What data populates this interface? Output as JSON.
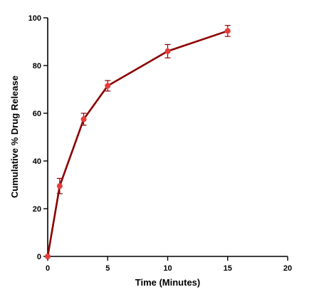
{
  "chart_data": {
    "type": "line",
    "title": "",
    "xlabel": "Time (Minutes)",
    "ylabel": "Cumulative % Drug Release",
    "xlim": [
      0,
      20
    ],
    "ylim": [
      0,
      100
    ],
    "x_ticks": [
      0,
      5,
      10,
      15,
      20
    ],
    "y_ticks": [
      0,
      20,
      40,
      60,
      80,
      100
    ],
    "grid": false,
    "legend": "none",
    "series": [
      {
        "x": [
          0,
          1,
          3,
          5,
          10,
          15
        ],
        "y": [
          0,
          29.5,
          57.5,
          71.5,
          86,
          94.5
        ],
        "error": [
          0,
          3.2,
          2.5,
          2.2,
          2.8,
          2.3
        ],
        "line_color": "#8b0000",
        "marker_color": "#e63c3c"
      }
    ]
  }
}
